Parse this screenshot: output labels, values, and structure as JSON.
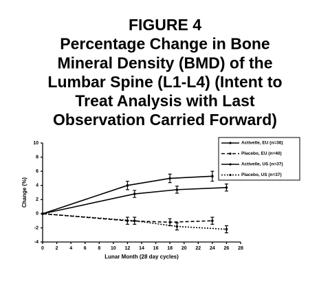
{
  "chart_data": {
    "type": "line",
    "title_lines": [
      "FIGURE 4",
      "Percentage Change in Bone",
      "Mineral Density (BMD) of the",
      "Lumbar Spine (L1-L4) (Intent to",
      "Treat Analysis with Last",
      "Observation Carried Forward)"
    ],
    "x_label": "Lunar Month (28 day cycles)",
    "y_label": "Change (%)",
    "xlim": [
      0,
      28
    ],
    "xticks": [
      0,
      2,
      4,
      6,
      8,
      10,
      12,
      14,
      16,
      18,
      20,
      22,
      24,
      26,
      28
    ],
    "ylim": [
      -4,
      10
    ],
    "yticks": [
      -4,
      -2,
      0,
      2,
      4,
      6,
      8,
      10
    ],
    "legend_position": "upper right",
    "series": [
      {
        "name": "Activelle, EU (n=36)",
        "color": "#000000",
        "line_style": "solid",
        "x": [
          0,
          12,
          18,
          24
        ],
        "values": [
          0,
          4.0,
          5.0,
          5.3
        ],
        "errors": [
          0,
          0.6,
          0.6,
          0.7
        ]
      },
      {
        "name": "Placebo, EU (n=40)",
        "color": "#000000",
        "line_style": "dashed",
        "x": [
          0,
          12,
          18,
          24
        ],
        "values": [
          0,
          -1.0,
          -1.2,
          -1.0
        ],
        "errors": [
          0,
          0.5,
          0.5,
          0.5
        ]
      },
      {
        "name": "Activelle, US (n=37)",
        "color": "#000000",
        "line_style": "solid",
        "x": [
          0,
          13,
          19,
          26
        ],
        "values": [
          0,
          2.8,
          3.4,
          3.7
        ],
        "errors": [
          0,
          0.5,
          0.5,
          0.5
        ]
      },
      {
        "name": "Placebo, US (n=37)",
        "color": "#000000",
        "line_style": "dotted",
        "x": [
          0,
          13,
          19,
          26
        ],
        "values": [
          0,
          -1.0,
          -1.8,
          -2.2
        ],
        "errors": [
          0,
          0.5,
          0.5,
          0.5
        ]
      }
    ]
  }
}
